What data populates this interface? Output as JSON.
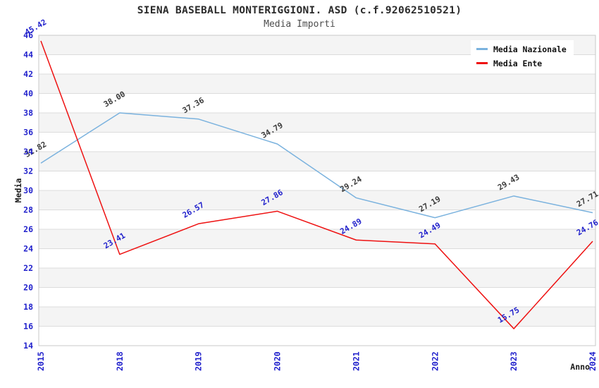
{
  "chart_data": {
    "type": "line",
    "title": "SIENA BASEBALL MONTERIGGIONI. ASD (c.f.92062510521)",
    "subtitle": "Media Importi",
    "xlabel": "Anno",
    "ylabel": "Media",
    "categories": [
      "2015",
      "2018",
      "2019",
      "2020",
      "2021",
      "2022",
      "2023",
      "2024"
    ],
    "series": [
      {
        "name": "Media Nazionale",
        "color": "#7ab2de",
        "label_color": "#3c3c3c",
        "values": [
          32.82,
          38.0,
          37.36,
          34.79,
          29.24,
          27.19,
          29.43,
          27.71
        ]
      },
      {
        "name": "Media Ente",
        "color": "#ee1111",
        "label_color": "#2222cc",
        "values": [
          45.42,
          23.41,
          26.57,
          27.86,
          24.89,
          24.49,
          15.75,
          24.76
        ]
      }
    ],
    "ylim": [
      14,
      46
    ],
    "ytick_step": 2,
    "grid": "horizontal-bands",
    "legend_position": "top-right",
    "colors": {
      "tick_label": "#2222cc",
      "band_gray": "#f4f4f4",
      "band_white": "#ffffff",
      "grid_line": "#dcdcdc",
      "plot_border": "#c9c9c9",
      "axis_title": "#1a1a1a",
      "legend_text": "#111111",
      "legend_bg": "#ffffff"
    }
  }
}
